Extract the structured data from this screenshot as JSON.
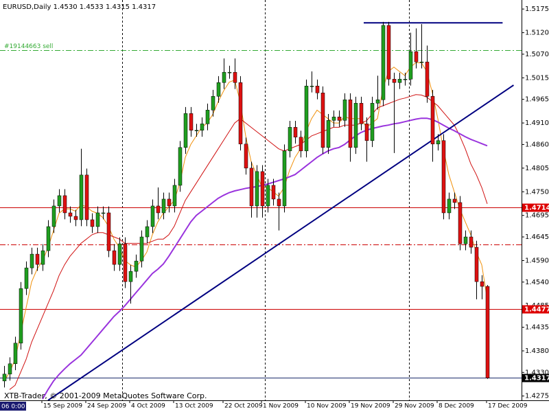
{
  "chart_data": {
    "type": "candlestick",
    "title": "EURUSD,Daily 1.4530 1.4533 1.4315 1.4317",
    "footer": "XTB-Trader, © 2001-2009 MetaQuotes Software Corp.",
    "crosshair_time": "06 0:00",
    "categories": [
      null,
      null,
      null,
      null,
      null,
      null,
      null,
      "15 Sep 2009",
      null,
      null,
      null,
      null,
      null,
      null,
      null,
      "24 Sep 2009",
      null,
      null,
      null,
      null,
      null,
      null,
      null,
      "4 Oct 2009",
      null,
      null,
      null,
      null,
      null,
      null,
      null,
      "13 Oct 2009",
      null,
      null,
      null,
      null,
      null,
      null,
      null,
      null,
      "22 Oct 2009",
      null,
      null,
      null,
      null,
      null,
      null,
      "1 Nov 2009",
      null,
      null,
      null,
      null,
      null,
      null,
      null,
      "10 Nov 2009",
      null,
      null,
      null,
      null,
      null,
      null,
      null,
      "19 Nov 2009",
      null,
      null,
      null,
      null,
      null,
      null,
      null,
      "29 Nov 2009",
      null,
      null,
      null,
      null,
      null,
      null,
      null,
      "8 Dec 2009",
      null,
      null,
      null,
      null,
      null,
      null,
      null,
      null,
      "17 Dec 2009"
    ],
    "open": [
      1.431,
      1.4326,
      1.435,
      1.4398,
      1.4525,
      1.4573,
      1.4605,
      1.4581,
      1.4613,
      1.4669,
      1.4717,
      1.4741,
      1.4701,
      1.4693,
      1.4685,
      1.4789,
      1.4685,
      1.4669,
      1.4701,
      1.4701,
      1.4613,
      1.4581,
      1.4629,
      1.4541,
      1.4565,
      1.4589,
      1.4645,
      1.4669,
      1.4717,
      1.4701,
      1.4733,
      1.4717,
      1.4765,
      1.4853,
      1.4932,
      1.4893,
      1.4893,
      1.4908,
      1.494,
      1.4972,
      1.5004,
      1.5028,
      1.5028,
      1.5004,
      1.4861,
      1.4805,
      1.4717,
      1.4797,
      1.4717,
      1.4765,
      1.4733,
      1.4717,
      1.4845,
      1.49,
      1.4877,
      1.4845,
      1.4996,
      1.4996,
      1.498,
      1.4853,
      1.4916,
      1.4924,
      1.4916,
      1.4964,
      1.4853,
      1.4956,
      1.4908,
      1.4869,
      1.4956,
      1.4964,
      1.5137,
      1.5012,
      1.5004,
      1.5012,
      1.5012,
      1.5076,
      1.5052,
      1.5052,
      1.4972,
      1.4861,
      1.4869,
      1.4701,
      1.4733,
      1.4725,
      1.4629,
      1.4645,
      1.4621,
      1.4541,
      1.453
    ],
    "high": [
      1.4345,
      1.4365,
      1.4413,
      1.454,
      1.4588,
      1.462,
      1.462,
      1.4628,
      1.4684,
      1.4732,
      1.4756,
      1.4756,
      1.4716,
      1.4708,
      1.485,
      1.4804,
      1.47,
      1.4716,
      1.4716,
      1.4716,
      1.4628,
      1.4644,
      1.4644,
      1.458,
      1.4604,
      1.466,
      1.4684,
      1.4732,
      1.476,
      1.4748,
      1.4748,
      1.478,
      1.4868,
      1.4947,
      1.4947,
      1.4908,
      1.4923,
      1.4955,
      1.4987,
      1.5019,
      1.506,
      1.5043,
      1.506,
      1.5019,
      1.4876,
      1.482,
      1.4812,
      1.4812,
      1.478,
      1.478,
      1.4748,
      1.486,
      1.4915,
      1.4915,
      1.4892,
      1.5011,
      1.503,
      1.5011,
      1.4995,
      1.4931,
      1.4939,
      1.4939,
      1.4979,
      1.4979,
      1.4971,
      1.4971,
      1.4923,
      1.4971,
      1.502,
      1.5145,
      1.5145,
      1.5027,
      1.5027,
      1.5027,
      1.512,
      1.513,
      1.514,
      1.509,
      1.4987,
      1.4884,
      1.4884,
      1.4748,
      1.4748,
      1.474,
      1.466,
      1.466,
      1.4636,
      1.4556,
      1.4533
    ],
    "low": [
      1.4295,
      1.4311,
      1.4335,
      1.4383,
      1.451,
      1.4558,
      1.4566,
      1.4566,
      1.4598,
      1.4654,
      1.4702,
      1.4686,
      1.4678,
      1.467,
      1.467,
      1.467,
      1.4654,
      1.4654,
      1.4686,
      1.4598,
      1.4566,
      1.4566,
      1.4526,
      1.449,
      1.455,
      1.4574,
      1.463,
      1.4654,
      1.4686,
      1.4686,
      1.4702,
      1.4702,
      1.475,
      1.4838,
      1.4878,
      1.4878,
      1.4878,
      1.4893,
      1.4925,
      1.4957,
      1.4989,
      1.5013,
      1.4989,
      1.4846,
      1.479,
      1.469,
      1.469,
      1.469,
      1.4702,
      1.4718,
      1.466,
      1.4702,
      1.483,
      1.4862,
      1.483,
      1.483,
      1.4981,
      1.4965,
      1.4838,
      1.4838,
      1.4901,
      1.4901,
      1.4901,
      1.482,
      1.4838,
      1.4893,
      1.482,
      1.4854,
      1.4941,
      1.4949,
      1.4997,
      1.484,
      1.4989,
      1.4997,
      1.4997,
      1.5037,
      1.5037,
      1.4957,
      1.482,
      1.4846,
      1.4686,
      1.4686,
      1.471,
      1.4614,
      1.4614,
      1.4606,
      1.45,
      1.45,
      1.4315
    ],
    "close": [
      1.4326,
      1.435,
      1.4398,
      1.4525,
      1.4573,
      1.4605,
      1.4581,
      1.4613,
      1.4669,
      1.4717,
      1.4741,
      1.4701,
      1.4693,
      1.4685,
      1.4789,
      1.4685,
      1.4669,
      1.4701,
      1.4701,
      1.4613,
      1.4581,
      1.4629,
      1.4541,
      1.4565,
      1.4589,
      1.4645,
      1.4669,
      1.4717,
      1.4701,
      1.4733,
      1.4717,
      1.4765,
      1.4853,
      1.4932,
      1.4893,
      1.4893,
      1.4908,
      1.494,
      1.4972,
      1.5004,
      1.5028,
      1.5028,
      1.5004,
      1.4861,
      1.4805,
      1.4717,
      1.4797,
      1.4717,
      1.4765,
      1.4733,
      1.4717,
      1.4845,
      1.49,
      1.4877,
      1.4845,
      1.4996,
      1.4996,
      1.498,
      1.4853,
      1.4916,
      1.4924,
      1.4916,
      1.4964,
      1.4853,
      1.4956,
      1.4908,
      1.4869,
      1.4956,
      1.4964,
      1.5137,
      1.5012,
      1.5004,
      1.5012,
      1.5012,
      1.5076,
      1.5052,
      1.5052,
      1.4972,
      1.4861,
      1.4869,
      1.4701,
      1.4733,
      1.4725,
      1.4629,
      1.4645,
      1.4621,
      1.4541,
      1.453,
      1.4317
    ],
    "up_color": "#1f9e1f",
    "down_color": "#dd1111",
    "wick_color": "#000000",
    "ma_lines": [
      {
        "color": "#f0900a",
        "values": [
          1.431,
          1.433,
          1.436,
          1.442,
          1.448,
          1.454,
          1.457,
          1.459,
          1.462,
          1.466,
          1.47,
          1.471,
          1.471,
          1.4705,
          1.472,
          1.4715,
          1.4705,
          1.47,
          1.469,
          1.467,
          1.464,
          1.462,
          1.459,
          1.458,
          1.4575,
          1.459,
          1.461,
          1.465,
          1.468,
          1.47,
          1.4715,
          1.473,
          1.477,
          1.483,
          1.486,
          1.488,
          1.49,
          1.491,
          1.493,
          1.496,
          1.4985,
          1.5005,
          1.501,
          1.496,
          1.488,
          1.482,
          1.479,
          1.476,
          1.476,
          1.475,
          1.474,
          1.476,
          1.48,
          1.483,
          1.485,
          1.489,
          1.492,
          1.494,
          1.493,
          1.492,
          1.491,
          1.491,
          1.4925,
          1.492,
          1.492,
          1.492,
          1.49,
          1.491,
          1.492,
          1.499,
          1.503,
          1.504,
          1.503,
          1.502,
          1.504,
          1.505,
          1.505,
          1.503,
          1.498,
          1.492,
          1.485,
          1.479,
          1.475,
          1.471,
          1.468,
          1.465,
          1.461,
          1.458,
          1.45
        ]
      },
      {
        "color": "#d01010",
        "values": [
          null,
          1.429,
          1.43,
          1.433,
          1.436,
          1.44,
          1.443,
          1.446,
          1.449,
          1.452,
          1.4555,
          1.458,
          1.46,
          1.4615,
          1.463,
          1.464,
          1.465,
          1.4655,
          1.4655,
          1.465,
          1.4645,
          1.464,
          1.463,
          1.463,
          1.463,
          1.463,
          1.463,
          1.4635,
          1.464,
          1.464,
          1.465,
          1.467,
          1.47,
          1.473,
          1.475,
          1.477,
          1.479,
          1.481,
          1.483,
          1.485,
          1.487,
          1.489,
          1.491,
          1.492,
          1.491,
          1.49,
          1.489,
          1.488,
          1.487,
          1.486,
          1.485,
          1.4845,
          1.485,
          1.4855,
          1.486,
          1.487,
          1.488,
          1.4885,
          1.489,
          1.4895,
          1.49,
          1.49,
          1.4905,
          1.4905,
          1.4905,
          1.491,
          1.4915,
          1.493,
          1.4945,
          1.495,
          1.4955,
          1.496,
          1.4965,
          1.4968,
          1.4972,
          1.4976,
          1.4975,
          1.497,
          1.496,
          1.495,
          1.4935,
          1.492,
          1.4905,
          1.488,
          1.485,
          1.4815,
          1.479,
          1.476,
          1.4722
        ]
      },
      {
        "color": "#9933dd",
        "values": [
          null,
          null,
          null,
          null,
          null,
          null,
          null,
          1.4268,
          1.429,
          1.431,
          1.4325,
          1.4338,
          1.435,
          1.436,
          1.437,
          1.4385,
          1.44,
          1.4415,
          1.443,
          1.4445,
          1.446,
          1.4472,
          1.4485,
          1.45,
          1.4515,
          1.453,
          1.4545,
          1.456,
          1.457,
          1.4582,
          1.46,
          1.462,
          1.464,
          1.466,
          1.468,
          1.4695,
          1.4705,
          1.4715,
          1.4725,
          1.4735,
          1.4742,
          1.4748,
          1.4752,
          1.4755,
          1.4758,
          1.476,
          1.4762,
          1.4765,
          1.4768,
          1.4772,
          1.4776,
          1.478,
          1.4785,
          1.479,
          1.48,
          1.481,
          1.482,
          1.483,
          1.4838,
          1.4845,
          1.485,
          1.4853,
          1.486,
          1.487,
          1.488,
          1.4888,
          1.4893,
          1.4897,
          1.49,
          1.4903,
          1.4905,
          1.4908,
          1.491,
          1.4913,
          1.4916,
          1.4919,
          1.4921,
          1.4921,
          1.4918,
          1.4912,
          1.4905,
          1.4898,
          1.4892,
          1.4885,
          1.4878,
          1.4872,
          1.4867,
          1.4862,
          1.4857
        ]
      }
    ],
    "trendlines": [
      {
        "color": "#000080",
        "x": [
          8,
          92.8
        ],
        "y": [
          1.4265,
          1.4998
        ]
      },
      {
        "color": "#000080",
        "x": [
          65.5,
          90.8
        ],
        "y": [
          1.5143,
          1.5143
        ]
      }
    ],
    "hlines": [
      {
        "value": 1.508,
        "color": "#33aa33",
        "dash": "dashdot",
        "text": "#19144663 sell"
      },
      {
        "value": 1.4714,
        "color": "#cc0000",
        "dash": "solid",
        "tag": "#dd0000"
      },
      {
        "value": 1.4628,
        "color": "#cc0000",
        "dash": "dashdot"
      },
      {
        "value": 1.4477,
        "color": "#cc0000",
        "dash": "solid",
        "tag": "#dd0000"
      },
      {
        "value": 1.4317,
        "color": "#1a2a6a",
        "dash": "solid",
        "tag": "#000000"
      }
    ],
    "ylim": [
      1.4265,
      1.5196
    ],
    "yticks": [
      1.5175,
      {
        "value": 1.512,
        "label": "1.5120"
      },
      {
        "value": 1.507,
        "label": "1.5070"
      },
      1.5015,
      1.4965,
      {
        "value": 1.491,
        "label": "1.4910"
      },
      {
        "value": 1.486,
        "label": "1.4860"
      },
      1.4805,
      {
        "value": 1.475,
        "label": "1.4750"
      },
      1.4695,
      1.4645,
      {
        "value": 1.459,
        "label": "1.4590"
      },
      {
        "value": 1.454,
        "label": "1.4540"
      },
      1.4485,
      1.4435,
      {
        "value": 1.438,
        "label": "1.4380"
      },
      {
        "value": 1.433,
        "label": "1.4330"
      },
      1.4275
    ]
  }
}
